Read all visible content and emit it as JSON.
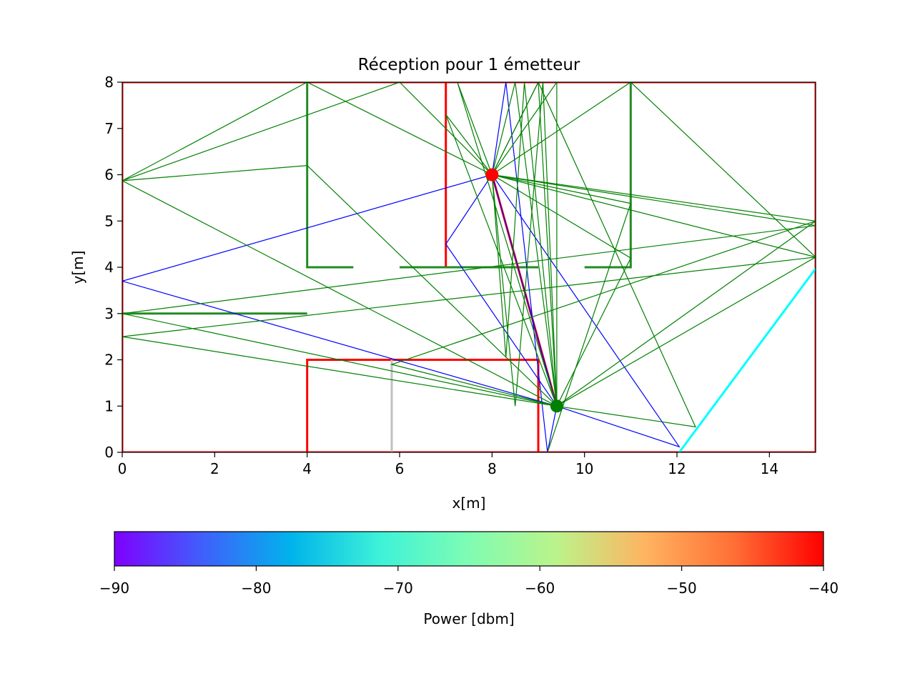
{
  "chart_data": [
    {
      "type": "line",
      "title": "Réception pour 1 émetteur",
      "xlabel": "x[m]",
      "ylabel": "y[m]",
      "xlim": [
        0,
        15
      ],
      "ylim": [
        0,
        8
      ],
      "xticks": [
        "0",
        "2",
        "4",
        "6",
        "8",
        "10",
        "12",
        "14"
      ],
      "yticks": [
        "0",
        "1",
        "2",
        "3",
        "4",
        "5",
        "6",
        "7",
        "8"
      ],
      "grid": false,
      "emitter": {
        "x": 8.0,
        "y": 6.0,
        "color": "#ff0000"
      },
      "receiver": {
        "x": 9.4,
        "y": 1.0,
        "color": "#008000"
      },
      "walls": [
        {
          "color": "#ff0000",
          "points": [
            [
              0,
              0
            ],
            [
              15,
              0
            ],
            [
              15,
              8
            ],
            [
              0,
              8
            ],
            [
              0,
              0
            ]
          ]
        },
        {
          "color": "#ff0000",
          "points": [
            [
              7,
              4
            ],
            [
              7,
              8
            ]
          ]
        },
        {
          "color": "#ff0000",
          "points": [
            [
              4,
              0
            ],
            [
              4,
              2
            ],
            [
              9,
              2
            ],
            [
              9,
              0
            ]
          ]
        },
        {
          "color": "#228b22",
          "points": [
            [
              4,
              8
            ],
            [
              4,
              4
            ],
            [
              5,
              4
            ]
          ]
        },
        {
          "color": "#228b22",
          "points": [
            [
              6,
              4
            ],
            [
              9,
              4
            ]
          ]
        },
        {
          "color": "#228b22",
          "points": [
            [
              10,
              4
            ],
            [
              11,
              4
            ],
            [
              11,
              8
            ]
          ]
        },
        {
          "color": "#228b22",
          "points": [
            [
              0,
              3
            ],
            [
              4,
              3
            ]
          ]
        },
        {
          "color": "#c0c0c0",
          "points": [
            [
              5.83,
              0
            ],
            [
              5.83,
              2
            ]
          ]
        },
        {
          "color": "#00ffff",
          "points": [
            [
              12.05,
              0
            ],
            [
              15,
              3.97
            ]
          ]
        }
      ],
      "rays": [
        {
          "color": "#ff0000",
          "points": [
            [
              8,
              6
            ],
            [
              9.4,
              1
            ]
          ]
        },
        {
          "color": "#0000ff",
          "points": [
            [
              8,
              6
            ],
            [
              0,
              3.7
            ],
            [
              9.4,
              1
            ]
          ]
        },
        {
          "color": "#0000ff",
          "points": [
            [
              8,
              6
            ],
            [
              12.05,
              0.12
            ],
            [
              9.4,
              1
            ]
          ]
        },
        {
          "color": "#0000ff",
          "points": [
            [
              8,
              6
            ],
            [
              8.3,
              8
            ],
            [
              9.2,
              0
            ],
            [
              9.4,
              1
            ]
          ]
        },
        {
          "color": "#0000ff",
          "points": [
            [
              8,
              6
            ],
            [
              7,
              4.5
            ],
            [
              9.4,
              1
            ]
          ]
        },
        {
          "color": "#0000ff",
          "points": [
            [
              8,
              6
            ],
            [
              9.4,
              1
            ]
          ]
        },
        {
          "color": "#008000",
          "points": [
            [
              8,
              6
            ],
            [
              6,
              8
            ],
            [
              0,
              5.87
            ],
            [
              4,
              6.2
            ],
            [
              9.4,
              1
            ]
          ]
        },
        {
          "color": "#008000",
          "points": [
            [
              8,
              6
            ],
            [
              4,
              8
            ],
            [
              0,
              5.87
            ],
            [
              9.4,
              1
            ]
          ]
        },
        {
          "color": "#008000",
          "points": [
            [
              8,
              6
            ],
            [
              15,
              4.9
            ],
            [
              0,
              3
            ],
            [
              9.4,
              1
            ]
          ]
        },
        {
          "color": "#008000",
          "points": [
            [
              8,
              6
            ],
            [
              15,
              4.22
            ],
            [
              0,
              2.5
            ],
            [
              9.4,
              1
            ]
          ]
        },
        {
          "color": "#008000",
          "points": [
            [
              8,
              6
            ],
            [
              11,
              8
            ],
            [
              15,
              4.22
            ],
            [
              9.4,
              1
            ]
          ]
        },
        {
          "color": "#008000",
          "points": [
            [
              8,
              6
            ],
            [
              11,
              5.38
            ],
            [
              9.2,
              0
            ]
          ]
        },
        {
          "color": "#008000",
          "points": [
            [
              8,
              6
            ],
            [
              15,
              5.0
            ],
            [
              5.83,
              1.9
            ],
            [
              9.4,
              1
            ]
          ]
        },
        {
          "color": "#008000",
          "points": [
            [
              8,
              6
            ],
            [
              8.3,
              2.05
            ],
            [
              8.7,
              8
            ],
            [
              9.4,
              1
            ]
          ]
        },
        {
          "color": "#008000",
          "points": [
            [
              8,
              6
            ],
            [
              9.0,
              8
            ],
            [
              9.4,
              1
            ]
          ]
        },
        {
          "color": "#008000",
          "points": [
            [
              8,
              6
            ],
            [
              8.5,
              8
            ],
            [
              9.4,
              1
            ]
          ]
        },
        {
          "color": "#008000",
          "points": [
            [
              8,
              6
            ],
            [
              9.0,
              8
            ],
            [
              12.4,
              0.55
            ],
            [
              9.4,
              1
            ]
          ]
        },
        {
          "color": "#008000",
          "points": [
            [
              8,
              6
            ],
            [
              9.4,
              8
            ],
            [
              9.4,
              1
            ]
          ]
        },
        {
          "color": "#008000",
          "points": [
            [
              8,
              6
            ],
            [
              7.25,
              8
            ],
            [
              9.4,
              1
            ]
          ]
        },
        {
          "color": "#008000",
          "points": [
            [
              8,
              6
            ],
            [
              7,
              7.3
            ],
            [
              9.4,
              1
            ]
          ]
        },
        {
          "color": "#008000",
          "points": [
            [
              8,
              6
            ],
            [
              11,
              4.2
            ],
            [
              9.4,
              1
            ]
          ]
        },
        {
          "color": "#008000",
          "points": [
            [
              8,
              6
            ],
            [
              8.5,
              1
            ],
            [
              9.1,
              8
            ],
            [
              9.4,
              1
            ]
          ]
        },
        {
          "color": "#008000",
          "points": [
            [
              9.4,
              1
            ],
            [
              15,
              5.0
            ]
          ]
        }
      ]
    },
    {
      "type": "heatmap",
      "colorbar": true,
      "orientation": "horizontal",
      "label": "Power [dbm]",
      "range": [
        -90,
        -40
      ],
      "ticks": [
        "−90",
        "−80",
        "−70",
        "−60",
        "−50",
        "−40"
      ],
      "colormap": "rainbow",
      "gradient": [
        "#7f00ff",
        "#3f60fb",
        "#00b4eb",
        "#3ef2d8",
        "#7ffcb3",
        "#bcf38a",
        "#ffb360",
        "#ff6e34",
        "#ff0000"
      ]
    }
  ]
}
